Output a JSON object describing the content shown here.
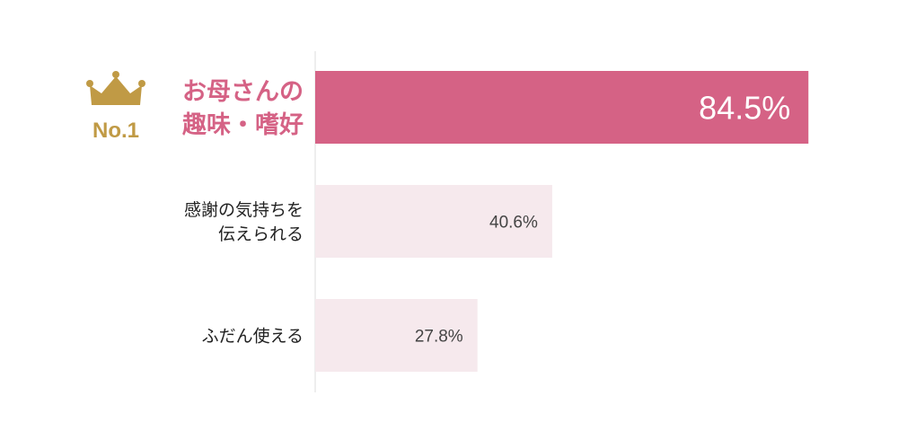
{
  "chart_data": {
    "type": "bar",
    "orientation": "horizontal",
    "categories": [
      [
        "お母さんの",
        "趣味・嗜好"
      ],
      [
        "感謝の気持ちを",
        "伝えられる"
      ],
      [
        "ふだん使える"
      ]
    ],
    "values": [
      84.5,
      40.6,
      27.8
    ],
    "value_labels": [
      "84.5%",
      "40.6%",
      "27.8%"
    ],
    "xlim": [
      0,
      100
    ],
    "grid": false,
    "badge": {
      "text": "No.1",
      "icon": "crown-icon",
      "color": "#c09a45"
    },
    "colors": {
      "top_bar": "#d56285",
      "other_bars": "#f6e9ed",
      "top_label": "#d56285",
      "top_value": "#ffffff",
      "axis": "#dddddd"
    }
  }
}
